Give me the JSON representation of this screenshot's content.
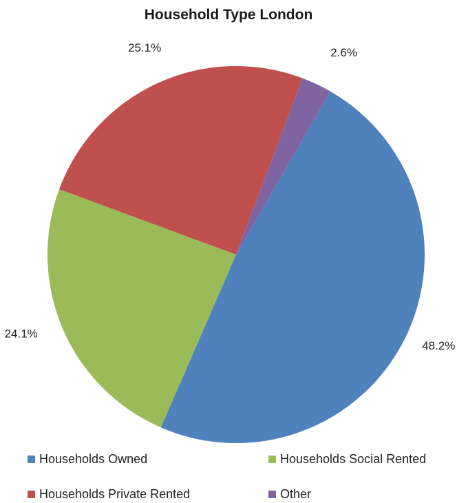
{
  "chart_data": {
    "type": "pie",
    "title": "Household Type London",
    "slices": [
      {
        "name": "Households Owned",
        "value": 48.2,
        "label": "48.2%",
        "color": "#4F81BD"
      },
      {
        "name": "Households Social Rented",
        "value": 24.1,
        "label": "24.1%",
        "color": "#9BBB59"
      },
      {
        "name": "Households Private Rented",
        "value": 25.1,
        "label": "25.1%",
        "color": "#C0504D"
      },
      {
        "name": "Other",
        "value": 2.6,
        "label": "2.6%",
        "color": "#8064A2"
      }
    ],
    "legend": {
      "position": "bottom",
      "items": [
        "Households Owned",
        "Households Social Rented",
        "Households Private Rented",
        "Other"
      ]
    }
  }
}
